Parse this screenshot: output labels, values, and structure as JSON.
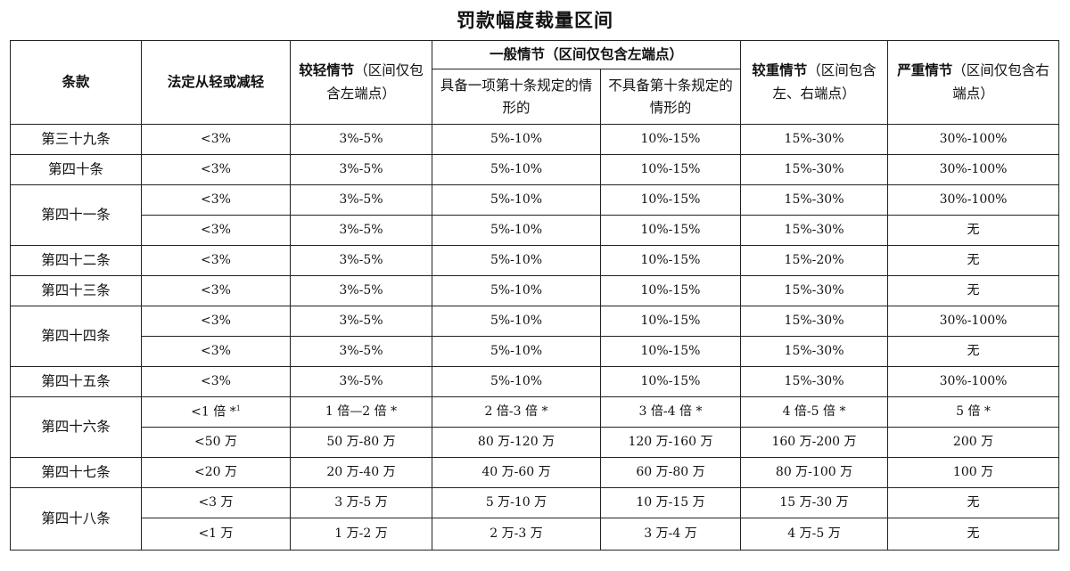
{
  "title": "罚款幅度裁量区间",
  "header": {
    "col_article": "条款",
    "col_mitigate": "法定从轻或减轻",
    "col_light_bold": "较轻情节",
    "col_light_note": "（区间仅包含左端点）",
    "col_general": "一般情节（区间仅包含左端点）",
    "col_general_a": "具备一项第十条规定的情形的",
    "col_general_b": "不具备第十条规定的情形的",
    "col_heavier_bold": "较重情节",
    "col_heavier_note": "（区间包含左、右端点）",
    "col_severe_bold": "严重情节",
    "col_severe_note": "（区间仅包含右端点）"
  },
  "articles": {
    "a39": "第三十九条",
    "a40": "第四十条",
    "a41": "第四十一条",
    "a42": "第四十二条",
    "a43": "第四十三条",
    "a44": "第四十四条",
    "a45": "第四十五条",
    "a46": "第四十六条",
    "a47": "第四十七条",
    "a48": "第四十八条"
  },
  "rows": [
    {
      "c": [
        "<3%",
        "3%-5%",
        "5%-10%",
        "10%-15%",
        "15%-30%",
        "30%-100%"
      ]
    },
    {
      "c": [
        "<3%",
        "3%-5%",
        "5%-10%",
        "10%-15%",
        "15%-30%",
        "30%-100%"
      ]
    },
    {
      "c": [
        "<3%",
        "3%-5%",
        "5%-10%",
        "10%-15%",
        "15%-30%",
        "30%-100%"
      ]
    },
    {
      "c": [
        "<3%",
        "3%-5%",
        "5%-10%",
        "10%-15%",
        "15%-30%",
        "无"
      ]
    },
    {
      "c": [
        "<3%",
        "3%-5%",
        "5%-10%",
        "10%-15%",
        "15%-20%",
        "无"
      ]
    },
    {
      "c": [
        "<3%",
        "3%-5%",
        "5%-10%",
        "10%-15%",
        "15%-30%",
        "无"
      ]
    },
    {
      "c": [
        "<3%",
        "3%-5%",
        "5%-10%",
        "10%-15%",
        "15%-30%",
        "30%-100%"
      ]
    },
    {
      "c": [
        "<3%",
        "3%-5%",
        "5%-10%",
        "10%-15%",
        "15%-30%",
        "无"
      ]
    },
    {
      "c": [
        "<3%",
        "3%-5%",
        "5%-10%",
        "10%-15%",
        "15%-30%",
        "30%-100%"
      ]
    },
    {
      "c": [
        "<1 倍 *",
        "1 倍—2 倍 *",
        "2 倍-3 倍 *",
        "3 倍-4 倍 *",
        "4 倍-5 倍 *",
        "5 倍 *"
      ],
      "footnote": "1"
    },
    {
      "c": [
        "<50 万",
        "50 万-80 万",
        "80 万-120 万",
        "120 万-160 万",
        "160 万-200 万",
        "200 万"
      ]
    },
    {
      "c": [
        "<20 万",
        "20 万-40 万",
        "40 万-60 万",
        "60 万-80 万",
        "80 万-100 万",
        "100 万"
      ]
    },
    {
      "c": [
        "<3 万",
        "3 万-5 万",
        "5 万-10 万",
        "10 万-15 万",
        "15 万-30 万",
        "无"
      ]
    },
    {
      "c": [
        "<1 万",
        "1 万-2 万",
        "2 万-3 万",
        "3 万-4 万",
        "4 万-5 万",
        "无"
      ]
    }
  ]
}
